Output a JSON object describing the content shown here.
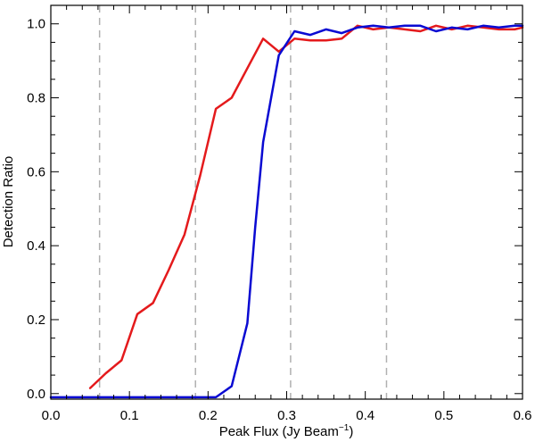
{
  "chart_data": {
    "type": "line",
    "xlabel": "Peak Flux (Jy Beam",
    "xlabel_sup": "−1",
    "xlabel_suffix": ")",
    "ylabel": "Detection Ratio",
    "xlim": [
      0.0,
      0.6
    ],
    "ylim": [
      -0.015,
      1.05
    ],
    "x_ticks": [
      0.0,
      0.1,
      0.2,
      0.3,
      0.4,
      0.5,
      0.6
    ],
    "x_tick_labels": [
      "0.0",
      "0.1",
      "0.2",
      "0.3",
      "0.4",
      "0.5",
      "0.6"
    ],
    "y_ticks": [
      0.0,
      0.2,
      0.4,
      0.6,
      0.8,
      1.0
    ],
    "y_tick_labels": [
      "0.0",
      "0.2",
      "0.4",
      "0.6",
      "0.8",
      "1.0"
    ],
    "grid": false,
    "vlines": [
      0.062,
      0.184,
      0.305,
      0.427
    ],
    "vline_color": "#b0b0b0",
    "series": [
      {
        "color": "#e41a1c",
        "x": [
          0.05,
          0.07,
          0.09,
          0.11,
          0.13,
          0.15,
          0.17,
          0.19,
          0.21,
          0.23,
          0.25,
          0.27,
          0.29,
          0.31,
          0.33,
          0.35,
          0.37,
          0.39,
          0.41,
          0.43,
          0.45,
          0.47,
          0.49,
          0.51,
          0.53,
          0.55,
          0.57,
          0.59,
          0.6
        ],
        "y": [
          0.015,
          0.055,
          0.09,
          0.215,
          0.245,
          0.335,
          0.43,
          0.59,
          0.77,
          0.8,
          0.88,
          0.96,
          0.925,
          0.96,
          0.955,
          0.955,
          0.96,
          0.995,
          0.985,
          0.99,
          0.985,
          0.98,
          0.995,
          0.985,
          0.995,
          0.99,
          0.985,
          0.985,
          0.99
        ]
      },
      {
        "color": "#0a0ad2",
        "x": [
          0.0,
          0.21,
          0.23,
          0.25,
          0.26,
          0.27,
          0.29,
          0.31,
          0.33,
          0.35,
          0.37,
          0.39,
          0.41,
          0.43,
          0.45,
          0.47,
          0.49,
          0.51,
          0.53,
          0.55,
          0.57,
          0.59,
          0.6
        ],
        "y": [
          -0.01,
          -0.01,
          0.02,
          0.19,
          0.45,
          0.68,
          0.915,
          0.98,
          0.97,
          0.985,
          0.975,
          0.99,
          0.995,
          0.99,
          0.995,
          0.995,
          0.98,
          0.99,
          0.985,
          0.995,
          0.99,
          0.995,
          0.995
        ]
      }
    ]
  }
}
